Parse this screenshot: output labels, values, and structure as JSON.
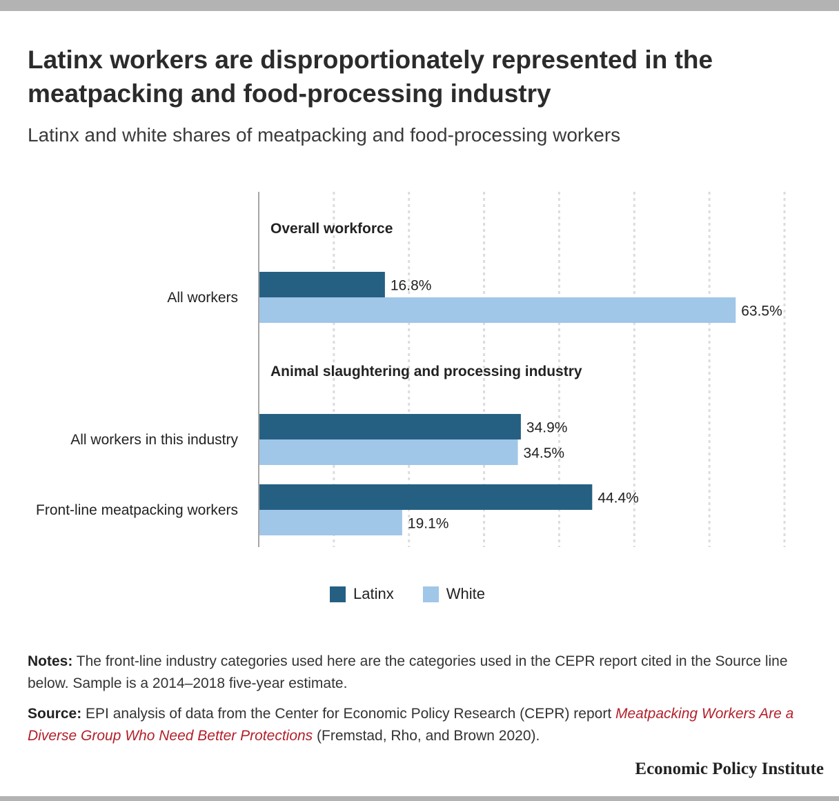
{
  "header": {
    "title": "Latinx workers are disproportionately represented in the meatpacking and food-processing industry",
    "subtitle": "Latinx and white shares of meatpacking and food-processing workers"
  },
  "chart_data": {
    "type": "bar",
    "orientation": "horizontal",
    "xlim": [
      0,
      70
    ],
    "grid": true,
    "value_suffix": "%",
    "groups": [
      {
        "heading": "Overall workforce",
        "categories": [
          {
            "label": "All workers",
            "values": [
              16.8,
              63.5
            ]
          }
        ]
      },
      {
        "heading": "Animal slaughtering and processing industry",
        "categories": [
          {
            "label": "All workers in this industry",
            "values": [
              34.9,
              34.5
            ]
          },
          {
            "label": "Front-line meatpacking workers",
            "values": [
              44.4,
              19.1
            ]
          }
        ]
      }
    ],
    "series": [
      {
        "name": "Latinx",
        "color": "#256083"
      },
      {
        "name": "White",
        "color": "#a0c6e8"
      }
    ],
    "legend_position": "bottom"
  },
  "notes": {
    "label": "Notes:",
    "text": " The front-line industry categories used here are the categories used in the CEPR report cited in the Source line below. Sample is a 2014–2018 five-year estimate."
  },
  "source": {
    "label": "Source:",
    "text_before": " EPI analysis of data from the Center for Economic Policy Research (CEPR) report ",
    "link_text": "Meatpacking Workers Are a Diverse Group Who Need Better Protections",
    "text_after": " (Fremstad, Rho, and Brown 2020)."
  },
  "branding": {
    "name": "Economic Policy Institute"
  },
  "colors": {
    "accent_link": "#b3202a",
    "frame_bar": "#b3b3b3"
  }
}
